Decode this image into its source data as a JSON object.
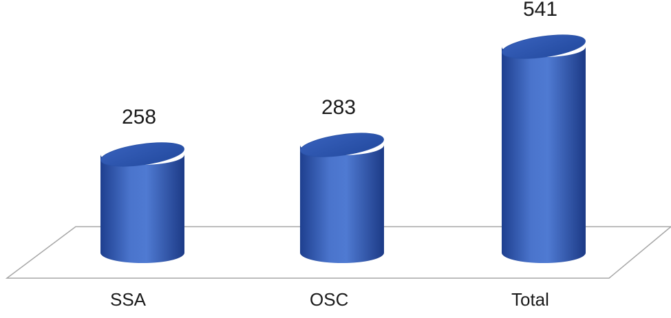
{
  "chart_data": {
    "type": "bar",
    "style": "3d-cylinder",
    "categories": [
      "SSA",
      "OSC",
      "Total"
    ],
    "values": [
      258,
      283,
      541
    ],
    "data_labels": [
      "258",
      "283",
      "541"
    ],
    "title": "",
    "xlabel": "",
    "ylabel": "",
    "ylim": [
      0,
      541
    ],
    "grid": false,
    "legend": "none",
    "colors": {
      "bar_front": "#4a74cc",
      "bar_dark": "#1e3f8f",
      "bar_top": "#2d56b0",
      "floor_line": "#a6a6a6",
      "text": "#1a1a1a"
    }
  }
}
